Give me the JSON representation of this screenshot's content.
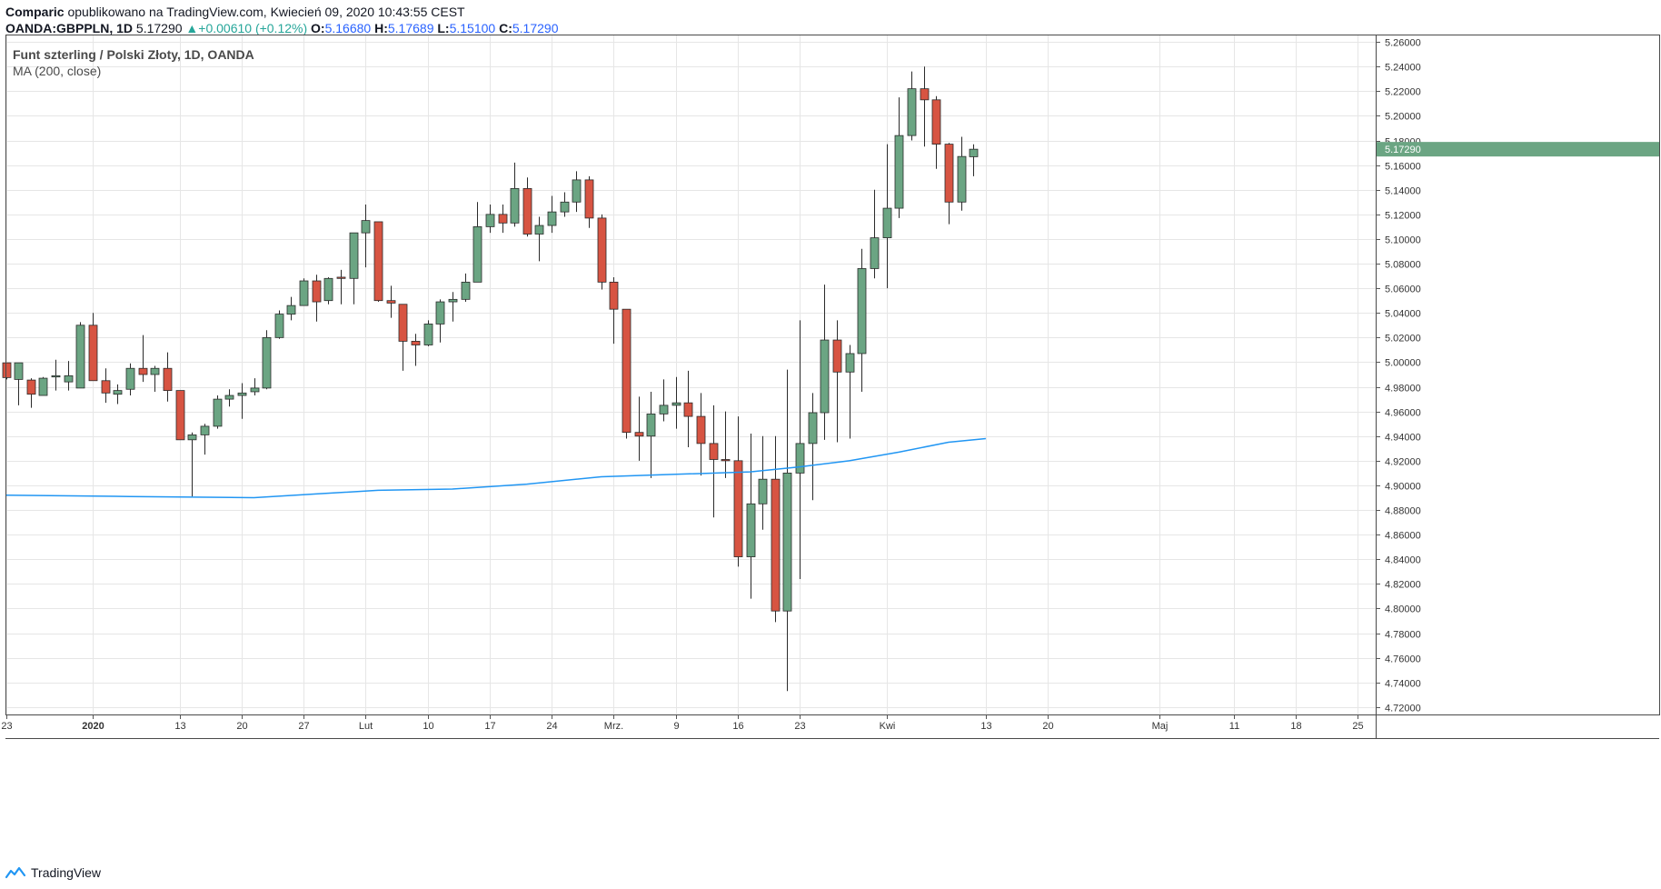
{
  "header": {
    "author": "Comparic",
    "published_text": "opublikowano na TradingView.com, Kwiecień 09, 2020 10:43:55 CEST",
    "symbol": "OANDA:GBPPLN, 1D",
    "last": "5.17290",
    "change": "+0.00610 (+0.12%)",
    "o_label": "O:",
    "o_val": "5.16680",
    "h_label": "H:",
    "h_val": "5.17689",
    "l_label": "L:",
    "l_val": "5.15100",
    "c_label": "C:",
    "c_val": "5.17290"
  },
  "legend": {
    "title": "Funt szterling / Polski Złoty, 1D, OANDA",
    "indicator": "MA (200, close)"
  },
  "footer": {
    "brand": "TradingView"
  },
  "colors": {
    "up": "#6ba583",
    "down": "#d75442",
    "ma": "#2196f3",
    "grid": "#e6e6e6",
    "price_tag": "#6ba583"
  },
  "chart_data": {
    "type": "candlestick",
    "y_ticks": [
      "5.26000",
      "5.24000",
      "5.22000",
      "5.20000",
      "5.18000",
      "5.16000",
      "5.14000",
      "5.12000",
      "5.10000",
      "5.08000",
      "5.06000",
      "5.04000",
      "5.02000",
      "5.00000",
      "4.98000",
      "4.96000",
      "4.94000",
      "4.92000",
      "4.90000",
      "4.88000",
      "4.86000",
      "4.84000",
      "4.82000",
      "4.80000",
      "4.78000",
      "4.76000",
      "4.74000",
      "4.72000"
    ],
    "ylim": [
      4.714,
      5.266
    ],
    "x_ticks": [
      {
        "label": "23",
        "idx": 0
      },
      {
        "label": "2020",
        "idx": 7,
        "bold": true
      },
      {
        "label": "13",
        "idx": 14
      },
      {
        "label": "20",
        "idx": 19
      },
      {
        "label": "27",
        "idx": 24
      },
      {
        "label": "Lut",
        "idx": 29
      },
      {
        "label": "10",
        "idx": 34
      },
      {
        "label": "17",
        "idx": 39
      },
      {
        "label": "24",
        "idx": 44
      },
      {
        "label": "Mrz.",
        "idx": 49
      },
      {
        "label": "9",
        "idx": 54
      },
      {
        "label": "16",
        "idx": 59
      },
      {
        "label": "23",
        "idx": 64
      },
      {
        "label": "Kwi",
        "idx": 71
      },
      {
        "label": "13",
        "idx": 79
      },
      {
        "label": "20",
        "idx": 84
      },
      {
        "label": "Maj",
        "idx": 93
      },
      {
        "label": "11",
        "idx": 99
      },
      {
        "label": "18",
        "idx": 104
      },
      {
        "label": "25",
        "idx": 109
      }
    ],
    "last_price_label": "5.17290",
    "last_price": 5.1729,
    "candles": [
      [
        4.9995,
        4.999,
        4.986,
        4.9875
      ],
      [
        4.986,
        4.9995,
        4.965,
        4.9995
      ],
      [
        4.9855,
        4.987,
        4.963,
        4.974
      ],
      [
        4.973,
        4.988,
        4.973,
        4.987
      ],
      [
        4.988,
        5.002,
        4.977,
        4.989
      ],
      [
        4.984,
        5.001,
        4.977,
        4.989
      ],
      [
        4.979,
        5.0325,
        4.979,
        5.03
      ],
      [
        5.03,
        5.04,
        4.985,
        4.985
      ],
      [
        4.985,
        4.995,
        4.967,
        4.975
      ],
      [
        4.974,
        4.982,
        4.966,
        4.977
      ],
      [
        4.978,
        4.999,
        4.973,
        4.995
      ],
      [
        4.995,
        5.022,
        4.984,
        4.99
      ],
      [
        4.99,
        4.997,
        4.976,
        4.995
      ],
      [
        4.995,
        5.008,
        4.968,
        4.977
      ],
      [
        4.977,
        4.977,
        4.937,
        4.937
      ],
      [
        4.937,
        4.943,
        4.891,
        4.941
      ],
      [
        4.941,
        4.95,
        4.925,
        4.948
      ],
      [
        4.948,
        4.973,
        4.946,
        4.97
      ],
      [
        4.97,
        4.978,
        4.964,
        4.973
      ],
      [
        4.973,
        4.983,
        4.954,
        4.975
      ],
      [
        4.976,
        4.987,
        4.973,
        4.979
      ],
      [
        4.979,
        5.026,
        4.978,
        5.02
      ],
      [
        5.02,
        5.042,
        5.019,
        5.039
      ],
      [
        5.039,
        5.053,
        5.034,
        5.046
      ],
      [
        5.046,
        5.068,
        5.046,
        5.066
      ],
      [
        5.066,
        5.071,
        5.033,
        5.049
      ],
      [
        5.05,
        5.069,
        5.047,
        5.068
      ],
      [
        5.069,
        5.075,
        5.047,
        5.068
      ],
      [
        5.068,
        5.105,
        5.047,
        5.105
      ],
      [
        5.105,
        5.128,
        5.077,
        5.115
      ],
      [
        5.114,
        5.114,
        5.049,
        5.05
      ],
      [
        5.05,
        5.062,
        5.036,
        5.048
      ],
      [
        5.047,
        5.047,
        4.993,
        5.017
      ],
      [
        5.017,
        5.023,
        4.997,
        5.014
      ],
      [
        5.014,
        5.034,
        5.013,
        5.031
      ],
      [
        5.031,
        5.051,
        5.016,
        5.049
      ],
      [
        5.049,
        5.057,
        5.033,
        5.051
      ],
      [
        5.051,
        5.072,
        5.049,
        5.065
      ],
      [
        5.065,
        5.13,
        5.065,
        5.11
      ],
      [
        5.11,
        5.128,
        5.105,
        5.12
      ],
      [
        5.12,
        5.128,
        5.105,
        5.113
      ],
      [
        5.113,
        5.162,
        5.11,
        5.141
      ],
      [
        5.141,
        5.15,
        5.102,
        5.104
      ],
      [
        5.104,
        5.118,
        5.082,
        5.111
      ],
      [
        5.111,
        5.135,
        5.105,
        5.122
      ],
      [
        5.122,
        5.138,
        5.118,
        5.13
      ],
      [
        5.13,
        5.155,
        5.122,
        5.148
      ],
      [
        5.148,
        5.151,
        5.109,
        5.117
      ],
      [
        5.117,
        5.12,
        5.059,
        5.065
      ],
      [
        5.065,
        5.069,
        5.015,
        5.043
      ],
      [
        5.043,
        5.043,
        4.938,
        4.943
      ],
      [
        4.943,
        4.972,
        4.92,
        4.94
      ],
      [
        4.94,
        4.976,
        4.906,
        4.958
      ],
      [
        4.958,
        4.986,
        4.952,
        4.965
      ],
      [
        4.965,
        4.988,
        4.946,
        4.967
      ],
      [
        4.967,
        4.993,
        4.931,
        4.956
      ],
      [
        4.956,
        4.975,
        4.908,
        4.934
      ],
      [
        4.934,
        4.965,
        4.874,
        4.921
      ],
      [
        4.921,
        4.96,
        4.906,
        4.92
      ],
      [
        4.92,
        4.956,
        4.834,
        4.842
      ],
      [
        4.842,
        4.942,
        4.808,
        4.885
      ],
      [
        4.885,
        4.94,
        4.864,
        4.905
      ],
      [
        4.905,
        4.94,
        4.789,
        4.798
      ],
      [
        4.798,
        4.994,
        4.733,
        4.91
      ],
      [
        4.91,
        5.034,
        4.824,
        4.934
      ],
      [
        4.934,
        4.975,
        4.888,
        4.959
      ],
      [
        4.959,
        5.063,
        4.937,
        5.018
      ],
      [
        5.018,
        5.034,
        4.935,
        4.992
      ],
      [
        4.992,
        5.014,
        4.938,
        5.007
      ],
      [
        5.007,
        5.092,
        4.976,
        5.076
      ],
      [
        5.076,
        5.14,
        5.068,
        5.101
      ],
      [
        5.101,
        5.177,
        5.06,
        5.125
      ],
      [
        5.125,
        5.215,
        5.117,
        5.184
      ],
      [
        5.184,
        5.236,
        5.18,
        5.222
      ],
      [
        5.222,
        5.24,
        5.175,
        5.213
      ],
      [
        5.213,
        5.216,
        5.157,
        5.177
      ],
      [
        5.177,
        5.178,
        5.112,
        5.13
      ],
      [
        5.13,
        5.183,
        5.123,
        5.167
      ],
      [
        5.1668,
        5.1769,
        5.151,
        5.1729
      ]
    ],
    "ma200": [
      [
        0,
        4.892
      ],
      [
        10,
        4.891
      ],
      [
        20,
        4.89
      ],
      [
        25,
        4.893
      ],
      [
        30,
        4.896
      ],
      [
        36,
        4.897
      ],
      [
        42,
        4.901
      ],
      [
        48,
        4.907
      ],
      [
        54,
        4.909
      ],
      [
        60,
        4.911
      ],
      [
        64,
        4.915
      ],
      [
        68,
        4.92
      ],
      [
        72,
        4.927
      ],
      [
        76,
        4.935
      ],
      [
        79,
        4.938
      ]
    ]
  }
}
